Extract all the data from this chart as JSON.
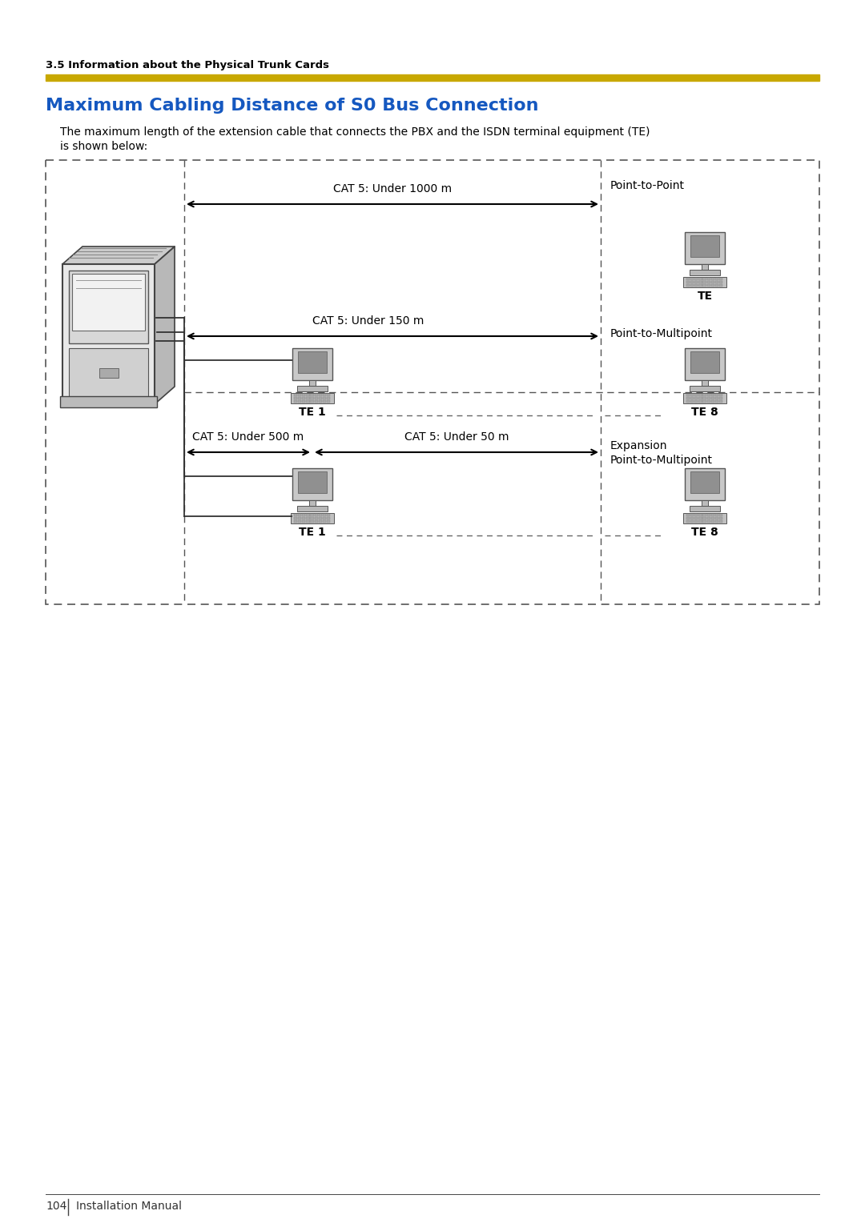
{
  "page_title": "3.5 Information about the Physical Trunk Cards",
  "section_title": "Maximum Cabling Distance of S0 Bus Connection",
  "body_line1": "The maximum length of the extension cable that connects the PBX and the ISDN terminal equipment (TE)",
  "body_line2": "is shown below:",
  "title_color": "#1558c0",
  "header_text_color": "#000000",
  "yellow_bar_color": "#c8a800",
  "body_text_color": "#000000",
  "diagram_border_color": "#555555",
  "arrow_color": "#000000",
  "dashed_line_color": "#666666",
  "label_cat5_1000": "CAT 5: Under 1000 m",
  "label_cat5_150": "CAT 5: Under 150 m",
  "label_cat5_500": "CAT 5: Under 500 m",
  "label_cat5_50": "CAT 5: Under 50 m",
  "label_p2p": "Point-to-Point",
  "label_p2mp": "Point-to-Multipoint",
  "label_exp_p2mp_line1": "Expansion",
  "label_exp_p2mp_line2": "Point-to-Multipoint",
  "label_te": "TE",
  "label_te1_mid": "TE 1",
  "label_te8_mid": "TE 8",
  "label_te1_bot": "TE 1",
  "label_te8_bot": "TE 8",
  "footer_text": "104",
  "footer_text2": "Installation Manual",
  "background_color": "#ffffff",
  "fig_width": 10.8,
  "fig_height": 15.28
}
